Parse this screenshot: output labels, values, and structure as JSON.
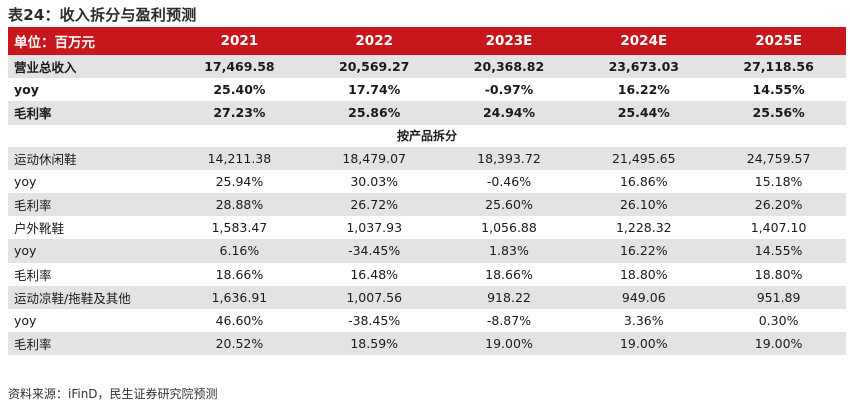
{
  "title": "表24：收入拆分与盈利预测",
  "header": [
    "单位：百万元",
    "2021",
    "2022",
    "2023E",
    "2024E",
    "2025E"
  ],
  "summary_rows": [
    {
      "label": "营业总收入",
      "values": [
        "17,469.58",
        "20,569.27",
        "20,368.82",
        "23,673.03",
        "27,118.56"
      ]
    },
    {
      "label": "yoy",
      "values": [
        "25.40%",
        "17.74%",
        "-0.97%",
        "16.22%",
        "14.55%"
      ]
    },
    {
      "label": "毛利率",
      "values": [
        "27.23%",
        "25.86%",
        "24.94%",
        "25.44%",
        "25.56%"
      ]
    }
  ],
  "section_label": "按产品拆分",
  "product_rows": [
    {
      "label": "运动休闲鞋",
      "values": [
        "14,211.38",
        "18,479.07",
        "18,393.72",
        "21,495.65",
        "24,759.57"
      ]
    },
    {
      "label": "yoy",
      "values": [
        "25.94%",
        "30.03%",
        "-0.46%",
        "16.86%",
        "15.18%"
      ]
    },
    {
      "label": "毛利率",
      "values": [
        "28.88%",
        "26.72%",
        "25.60%",
        "26.10%",
        "26.20%"
      ]
    },
    {
      "label": "户外靴鞋",
      "values": [
        "1,583.47",
        "1,037.93",
        "1,056.88",
        "1,228.32",
        "1,407.10"
      ]
    },
    {
      "label": "yoy",
      "values": [
        "6.16%",
        "-34.45%",
        "1.83%",
        "16.22%",
        "14.55%"
      ]
    },
    {
      "label": "毛利率",
      "values": [
        "18.66%",
        "16.48%",
        "18.66%",
        "18.80%",
        "18.80%"
      ]
    },
    {
      "label": "运动凉鞋/拖鞋及其他",
      "values": [
        "1,636.91",
        "1,007.56",
        "918.22",
        "949.06",
        "951.89"
      ]
    },
    {
      "label": "yoy",
      "values": [
        "46.60%",
        "-38.45%",
        "-8.87%",
        "3.36%",
        "0.30%"
      ]
    },
    {
      "label": "毛利率",
      "values": [
        "20.52%",
        "18.59%",
        "19.00%",
        "19.00%",
        "19.00%"
      ]
    }
  ],
  "source": "资料来源：iFinD，民生证券研究院预测"
}
